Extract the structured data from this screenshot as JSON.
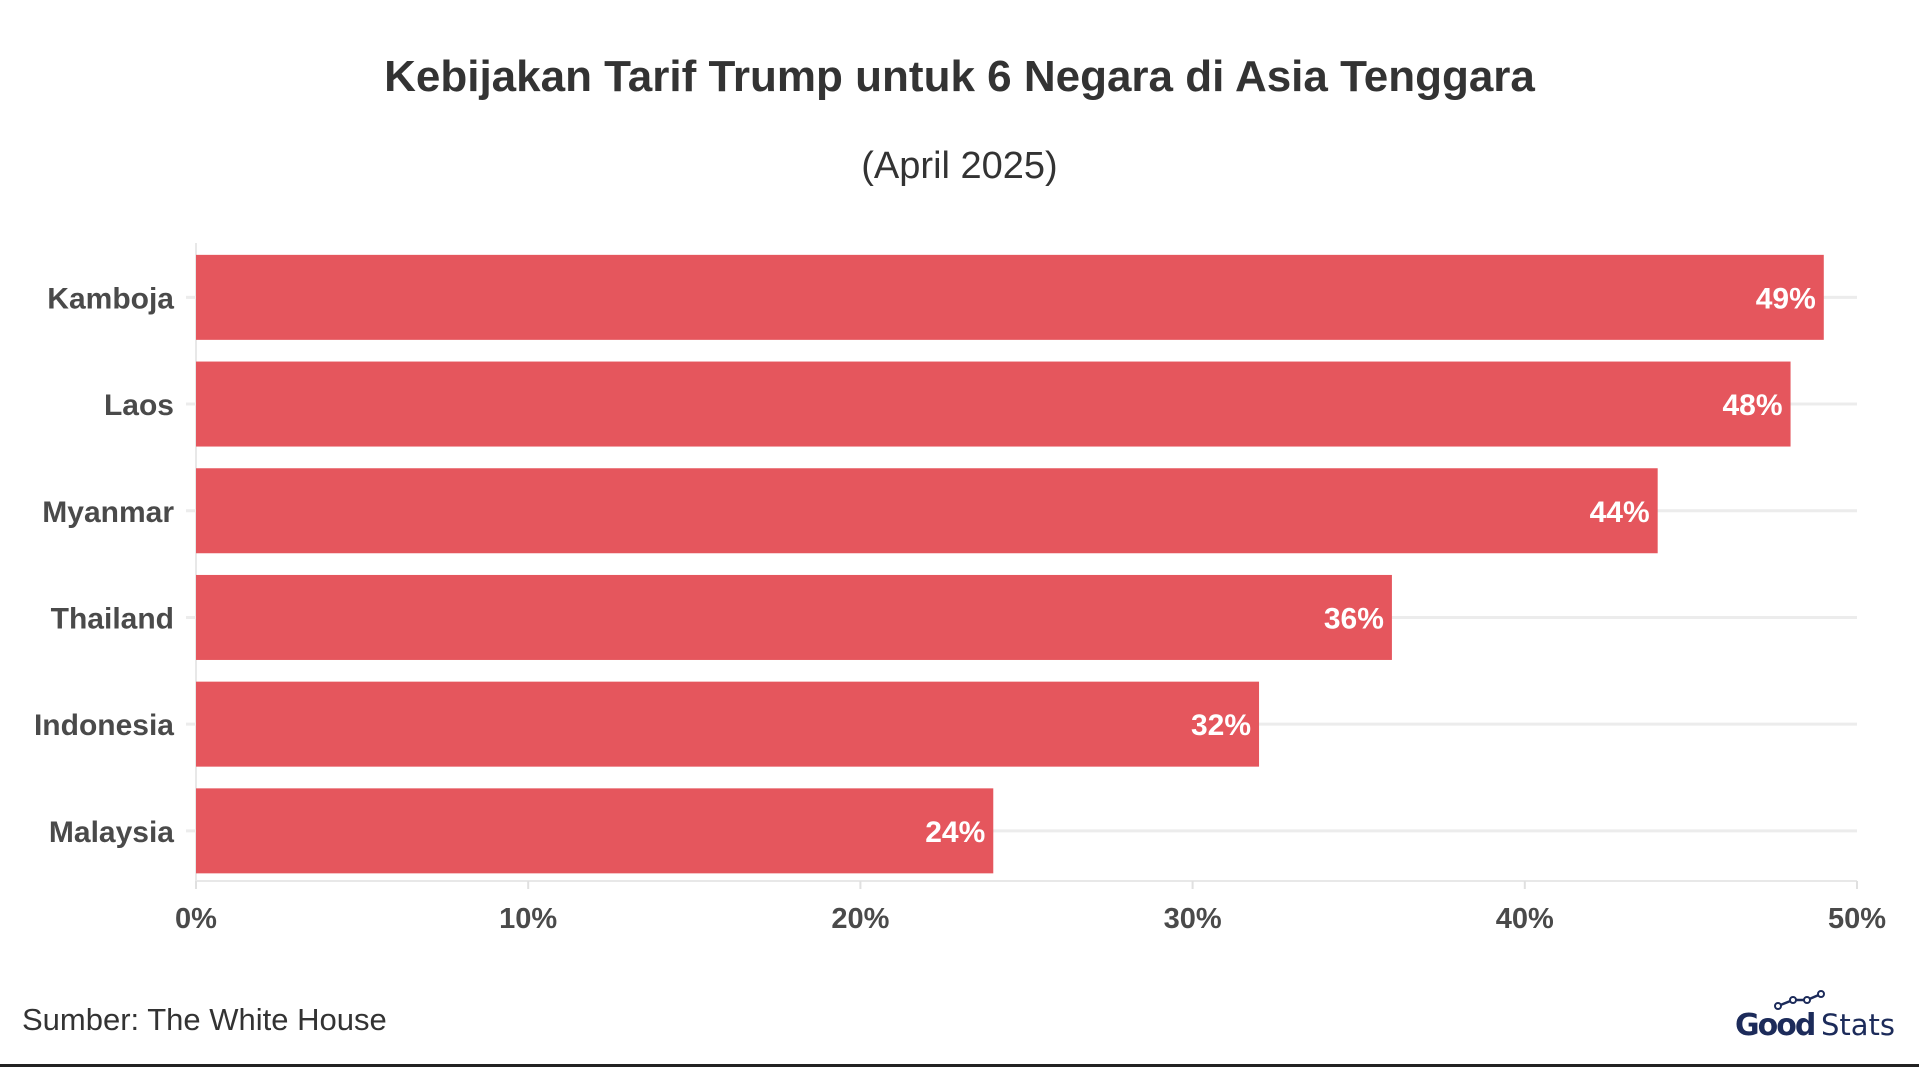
{
  "chart_data": {
    "type": "bar",
    "orientation": "horizontal",
    "title": "Kebijakan Tarif Trump untuk 6 Negara di Asia Tenggara",
    "subtitle": "(April 2025)",
    "categories": [
      "Kamboja",
      "Laos",
      "Myanmar",
      "Thailand",
      "Indonesia",
      "Malaysia"
    ],
    "values": [
      49,
      48,
      44,
      36,
      32,
      24
    ],
    "data_labels": [
      "49%",
      "48%",
      "44%",
      "36%",
      "32%",
      "24%"
    ],
    "xlim": [
      0,
      50
    ],
    "x_ticks": [
      0,
      10,
      20,
      30,
      40,
      50
    ],
    "x_tick_labels": [
      "0%",
      "10%",
      "20%",
      "30%",
      "40%",
      "50%"
    ],
    "xlabel": "",
    "ylabel": "",
    "grid": true,
    "bar_color": "#e5565d"
  },
  "source": "Sumber: The White House",
  "logo": {
    "text": "GoodStats",
    "color": "#1c2b5a"
  }
}
